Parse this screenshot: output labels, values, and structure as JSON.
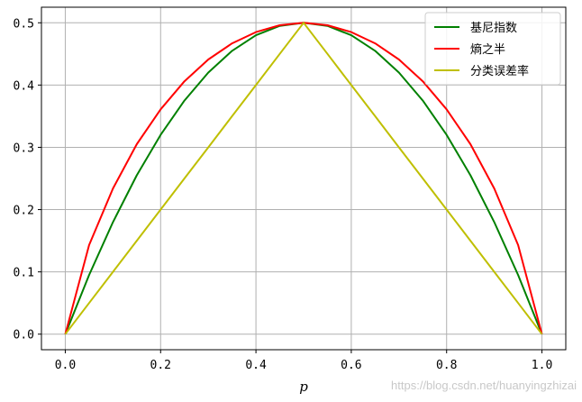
{
  "chart_data": {
    "type": "line",
    "title": "",
    "xlabel": "p",
    "ylabel": "",
    "xlim": [
      -0.05,
      1.05
    ],
    "ylim": [
      -0.025,
      0.525
    ],
    "x_ticks": [
      0.0,
      0.2,
      0.4,
      0.6,
      0.8,
      1.0
    ],
    "x_tick_labels": [
      "0.0",
      "0.2",
      "0.4",
      "0.6",
      "0.8",
      "1.0"
    ],
    "y_ticks": [
      0.0,
      0.1,
      0.2,
      0.3,
      0.4,
      0.5
    ],
    "y_tick_labels": [
      "0.0",
      "0.1",
      "0.2",
      "0.3",
      "0.4",
      "0.5"
    ],
    "grid": true,
    "legend_position": "top-right",
    "x": [
      0.0,
      0.05,
      0.1,
      0.15,
      0.2,
      0.25,
      0.3,
      0.35,
      0.4,
      0.45,
      0.5,
      0.55,
      0.6,
      0.65,
      0.7,
      0.75,
      0.8,
      0.85,
      0.9,
      0.95,
      1.0
    ],
    "series": [
      {
        "name": "基尼指数",
        "color": "#008000",
        "values": [
          0.0,
          0.095,
          0.18,
          0.255,
          0.32,
          0.375,
          0.42,
          0.455,
          0.48,
          0.495,
          0.5,
          0.495,
          0.48,
          0.455,
          0.42,
          0.375,
          0.32,
          0.255,
          0.18,
          0.095,
          0.0
        ]
      },
      {
        "name": "熵之半",
        "color": "#ff0000",
        "values": [
          0.0,
          0.143,
          0.234,
          0.305,
          0.361,
          0.406,
          0.441,
          0.467,
          0.485,
          0.496,
          0.5,
          0.496,
          0.485,
          0.467,
          0.441,
          0.406,
          0.361,
          0.305,
          0.234,
          0.143,
          0.0
        ]
      },
      {
        "name": "分类误差率",
        "color": "#bfbf00",
        "values": [
          0.0,
          0.05,
          0.1,
          0.15,
          0.2,
          0.25,
          0.3,
          0.35,
          0.4,
          0.45,
          0.5,
          0.45,
          0.4,
          0.35,
          0.3,
          0.25,
          0.2,
          0.15,
          0.1,
          0.05,
          0.0
        ]
      }
    ]
  },
  "watermark": "https://blog.csdn.net/huanyingzhizai"
}
